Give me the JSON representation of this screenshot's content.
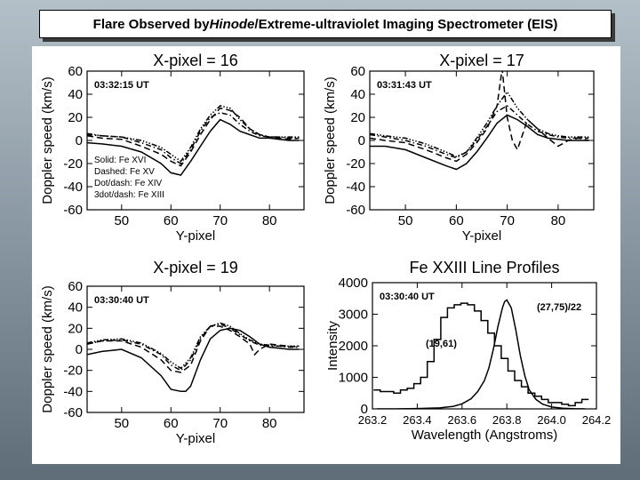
{
  "slide_title": {
    "prefix": "Flare Observed by ",
    "italic": "Hinode",
    "suffix": "/Extreme-ultraviolet Imaging Spectrometer (EIS)"
  },
  "chart_data": [
    {
      "type": "line",
      "title": "X-pixel = 16",
      "timestamp": "03:32:15 UT",
      "xlabel": "Y-pixel",
      "ylabel": "Doppler speed (km/s)",
      "xlim": [
        43,
        87
      ],
      "ylim": [
        -60,
        60
      ],
      "xticks": [
        50,
        60,
        70,
        80
      ],
      "yticks": [
        60,
        40,
        20,
        0,
        -20,
        -40,
        -60
      ],
      "legend": [
        "Solid: Fe XVI",
        "Dashed: Fe XV",
        "Dot/dash: Fe XIV",
        "3dot/dash: Fe XIII"
      ],
      "series": [
        {
          "style": "solid",
          "x": [
            43,
            46,
            50,
            54,
            58,
            60,
            62,
            64,
            66,
            68,
            70,
            72,
            74,
            76,
            78,
            80,
            82,
            84,
            86
          ],
          "y": [
            -2,
            -3,
            -5,
            -10,
            -20,
            -28,
            -30,
            -18,
            -5,
            8,
            18,
            14,
            8,
            5,
            2,
            2,
            1,
            0,
            0
          ]
        },
        {
          "style": "dashed",
          "x": [
            43,
            46,
            50,
            54,
            58,
            60,
            62,
            64,
            66,
            68,
            70,
            72,
            74,
            76,
            78,
            80,
            82,
            84,
            86
          ],
          "y": [
            4,
            2,
            1,
            -5,
            -12,
            -18,
            -22,
            -10,
            5,
            18,
            28,
            26,
            20,
            10,
            5,
            3,
            2,
            1,
            2
          ]
        },
        {
          "style": "dotdash",
          "x": [
            43,
            46,
            50,
            54,
            58,
            60,
            62,
            64,
            66,
            68,
            70,
            72,
            74,
            76,
            78,
            80,
            82,
            84,
            86
          ],
          "y": [
            5,
            4,
            3,
            -2,
            -8,
            -15,
            -20,
            -8,
            8,
            20,
            24,
            22,
            14,
            8,
            4,
            3,
            3,
            2,
            2
          ]
        },
        {
          "style": "3dotdash",
          "x": [
            43,
            46,
            50,
            54,
            58,
            60,
            62,
            64,
            66,
            68,
            70,
            72,
            74,
            76,
            78,
            80,
            82,
            84,
            86
          ],
          "y": [
            6,
            4,
            3,
            0,
            -6,
            -12,
            -18,
            -6,
            10,
            22,
            30,
            28,
            18,
            10,
            5,
            3,
            3,
            3,
            3
          ]
        }
      ]
    },
    {
      "type": "line",
      "title": "X-pixel = 17",
      "timestamp": "03:31:43 UT",
      "xlabel": "Y-pixel",
      "ylabel": "Doppler speed (km/s)",
      "xlim": [
        43,
        87
      ],
      "ylim": [
        -60,
        60
      ],
      "xticks": [
        50,
        60,
        70,
        80
      ],
      "yticks": [
        60,
        40,
        20,
        0,
        -20,
        -40,
        -60
      ],
      "series": [
        {
          "style": "solid",
          "x": [
            43,
            46,
            50,
            54,
            58,
            60,
            62,
            64,
            66,
            68,
            70,
            72,
            74,
            76,
            78,
            80,
            82,
            84,
            86
          ],
          "y": [
            -5,
            -5,
            -8,
            -15,
            -22,
            -25,
            -20,
            -10,
            2,
            15,
            22,
            18,
            12,
            5,
            2,
            1,
            0,
            0,
            0
          ]
        },
        {
          "style": "dashed",
          "x": [
            43,
            46,
            50,
            54,
            58,
            60,
            62,
            64,
            66,
            68,
            69,
            70,
            71,
            72,
            73,
            74,
            76,
            78,
            80,
            82,
            84,
            86
          ],
          "y": [
            2,
            0,
            -2,
            -8,
            -15,
            -18,
            -12,
            -2,
            10,
            30,
            62,
            20,
            0,
            -8,
            5,
            18,
            10,
            2,
            -5,
            0,
            2,
            0
          ]
        },
        {
          "style": "dotdash",
          "x": [
            43,
            46,
            50,
            54,
            58,
            60,
            62,
            64,
            66,
            68,
            70,
            72,
            74,
            76,
            78,
            80,
            82,
            84,
            86
          ],
          "y": [
            5,
            3,
            0,
            -5,
            -12,
            -15,
            -10,
            0,
            12,
            25,
            30,
            22,
            14,
            8,
            5,
            3,
            2,
            2,
            2
          ]
        },
        {
          "style": "3dotdash",
          "x": [
            43,
            46,
            50,
            54,
            58,
            60,
            62,
            64,
            66,
            68,
            70,
            72,
            74,
            76,
            78,
            80,
            82,
            84,
            86
          ],
          "y": [
            6,
            4,
            2,
            -3,
            -10,
            -14,
            -10,
            2,
            15,
            30,
            42,
            28,
            18,
            10,
            6,
            4,
            3,
            3,
            3
          ]
        }
      ]
    },
    {
      "type": "line",
      "title": "X-pixel = 19",
      "timestamp": "03:30:40 UT",
      "xlabel": "Y-pixel",
      "ylabel": "Doppler speed (km/s)",
      "xlim": [
        43,
        87
      ],
      "ylim": [
        -60,
        60
      ],
      "xticks": [
        50,
        60,
        70,
        80
      ],
      "yticks": [
        60,
        40,
        20,
        0,
        -20,
        -40,
        -60
      ],
      "series": [
        {
          "style": "solid",
          "x": [
            43,
            46,
            50,
            54,
            58,
            60,
            62,
            63,
            64,
            66,
            68,
            70,
            72,
            74,
            76,
            78,
            80,
            82,
            84,
            86
          ],
          "y": [
            -5,
            -2,
            0,
            -8,
            -25,
            -38,
            -40,
            -40,
            -35,
            -10,
            10,
            18,
            20,
            18,
            12,
            5,
            2,
            1,
            0,
            0
          ]
        },
        {
          "style": "dashed",
          "x": [
            43,
            46,
            50,
            54,
            58,
            60,
            62,
            64,
            66,
            68,
            70,
            72,
            74,
            76,
            77,
            78,
            80,
            82,
            84,
            86
          ],
          "y": [
            5,
            8,
            8,
            2,
            -10,
            -20,
            -22,
            -15,
            8,
            22,
            22,
            18,
            12,
            5,
            -5,
            0,
            5,
            4,
            3,
            2
          ]
        },
        {
          "style": "dotdash",
          "x": [
            43,
            46,
            50,
            54,
            58,
            60,
            62,
            64,
            66,
            68,
            70,
            72,
            74,
            76,
            78,
            80,
            82,
            84,
            86
          ],
          "y": [
            5,
            8,
            9,
            5,
            -5,
            -15,
            -20,
            -10,
            10,
            22,
            24,
            20,
            14,
            8,
            4,
            3,
            3,
            2,
            2
          ]
        },
        {
          "style": "3dotdash",
          "x": [
            43,
            46,
            50,
            54,
            58,
            60,
            62,
            64,
            66,
            68,
            70,
            72,
            74,
            76,
            78,
            80,
            82,
            84,
            86
          ],
          "y": [
            6,
            9,
            10,
            6,
            -4,
            -12,
            -18,
            -8,
            12,
            22,
            25,
            22,
            15,
            9,
            5,
            4,
            3,
            3,
            3
          ]
        }
      ]
    },
    {
      "type": "line",
      "title": "Fe XXIII Line Profiles",
      "timestamp": "03:30:40 UT",
      "xlabel": "Wavelength (Angstroms)",
      "ylabel": "Intensity",
      "xlim": [
        263.2,
        264.2
      ],
      "ylim": [
        0,
        4000
      ],
      "xticks": [
        263.2,
        263.4,
        263.6,
        263.8,
        264.0,
        264.2
      ],
      "xtick_labels": [
        "263.2",
        "263.4",
        "263.6",
        "263.8",
        "264.0",
        "264.2"
      ],
      "yticks": [
        0,
        1000,
        2000,
        3000,
        4000
      ],
      "annotations": [
        "(27,75)/22",
        "(19,61)"
      ],
      "series": [
        {
          "name": "(19,61)",
          "style": "step",
          "x": [
            263.22,
            263.25,
            263.28,
            263.31,
            263.34,
            263.37,
            263.4,
            263.43,
            263.46,
            263.49,
            263.52,
            263.55,
            263.58,
            263.61,
            263.64,
            263.67,
            263.7,
            263.73,
            263.76,
            263.79,
            263.82,
            263.85,
            263.88,
            263.91,
            263.94,
            263.97,
            264.0,
            264.03,
            264.06,
            264.09,
            264.12,
            264.15
          ],
          "y": [
            600,
            550,
            550,
            500,
            600,
            650,
            800,
            1000,
            1500,
            2200,
            2900,
            3200,
            3300,
            3350,
            3300,
            3100,
            2800,
            2400,
            2000,
            1600,
            1200,
            900,
            700,
            500,
            400,
            300,
            200,
            200,
            150,
            100,
            200,
            300
          ]
        },
        {
          "name": "(27,75)/22",
          "style": "solid",
          "x": [
            263.22,
            263.3,
            263.4,
            263.5,
            263.56,
            263.6,
            263.64,
            263.67,
            263.7,
            263.72,
            263.74,
            263.76,
            263.78,
            263.79,
            263.8,
            263.82,
            263.84,
            263.86,
            263.88,
            263.9,
            263.93,
            263.96,
            264.0,
            264.05,
            264.1,
            264.15
          ],
          "y": [
            0,
            0,
            10,
            30,
            80,
            160,
            320,
            550,
            900,
            1300,
            1900,
            2600,
            3200,
            3400,
            3450,
            3200,
            2500,
            1700,
            1050,
            600,
            300,
            150,
            60,
            20,
            5,
            0
          ]
        }
      ]
    }
  ]
}
